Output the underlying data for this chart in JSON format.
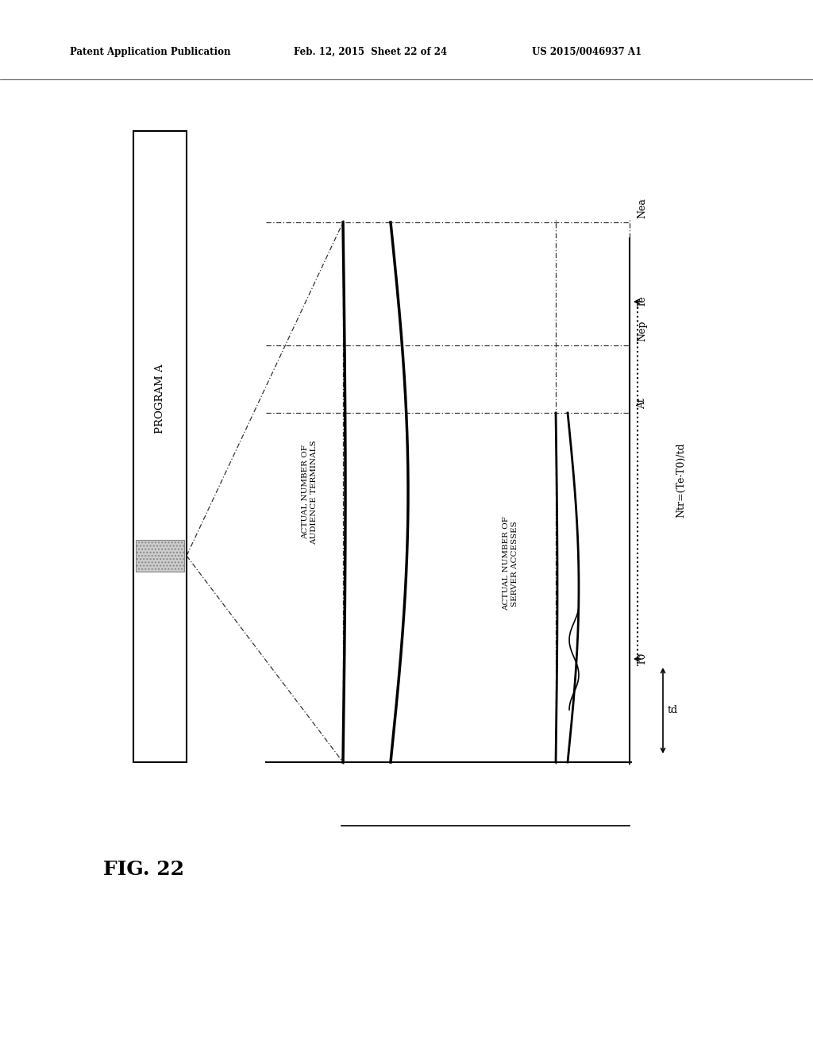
{
  "header_left": "Patent Application Publication",
  "header_center": "Feb. 12, 2015  Sheet 22 of 24",
  "header_right": "US 2015/0046937 A1",
  "fig_label": "FIG. 22",
  "program_label": "PROGRAM A",
  "label_nea": "Nea",
  "label_nep": "Nep",
  "label_at": "At",
  "label_te": "Te",
  "label_t0": "T0",
  "label_td": "td",
  "label_ntr": "Ntr=(Te-T0)/td",
  "label_audience": "ACTUAL NUMBER OF\nAUDIENCE TERMINALS",
  "label_server": "ACTUAL NUMBER OF\nSERVER ACCESSES",
  "bg_color": "#ffffff"
}
